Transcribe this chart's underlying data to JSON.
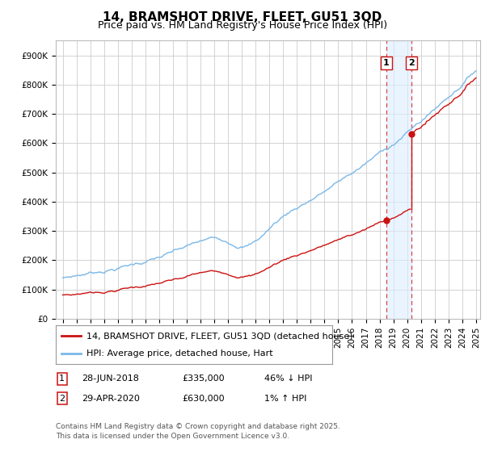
{
  "title": "14, BRAMSHOT DRIVE, FLEET, GU51 3QD",
  "subtitle": "Price paid vs. HM Land Registry's House Price Index (HPI)",
  "bg_color": "#ffffff",
  "plot_bg_color": "#ffffff",
  "grid_color": "#cccccc",
  "hpi_color": "#7ab8e8",
  "price_color": "#cc1111",
  "ylim": [
    0,
    950000
  ],
  "yticks": [
    0,
    100000,
    200000,
    300000,
    400000,
    500000,
    600000,
    700000,
    800000,
    900000
  ],
  "ytick_labels": [
    "£0",
    "£100K",
    "£200K",
    "£300K",
    "£400K",
    "£500K",
    "£600K",
    "£700K",
    "£800K",
    "£900K"
  ],
  "year_start": 1995,
  "year_end": 2025,
  "transaction1_date": 2018.49,
  "transaction1_price": 335000,
  "transaction2_date": 2020.33,
  "transaction2_price": 630000,
  "legend_line1": "14, BRAMSHOT DRIVE, FLEET, GU51 3QD (detached house)",
  "legend_line2": "HPI: Average price, detached house, Hart",
  "table_row1": [
    "1",
    "28-JUN-2018",
    "£335,000",
    "46% ↓ HPI"
  ],
  "table_row2": [
    "2",
    "29-APR-2020",
    "£630,000",
    "1% ↑ HPI"
  ],
  "footnote": "Contains HM Land Registry data © Crown copyright and database right 2025.\nThis data is licensed under the Open Government Licence v3.0.",
  "title_fontsize": 11,
  "subtitle_fontsize": 9,
  "tick_fontsize": 7.5,
  "legend_fontsize": 8,
  "table_fontsize": 8,
  "footnote_fontsize": 6.5
}
